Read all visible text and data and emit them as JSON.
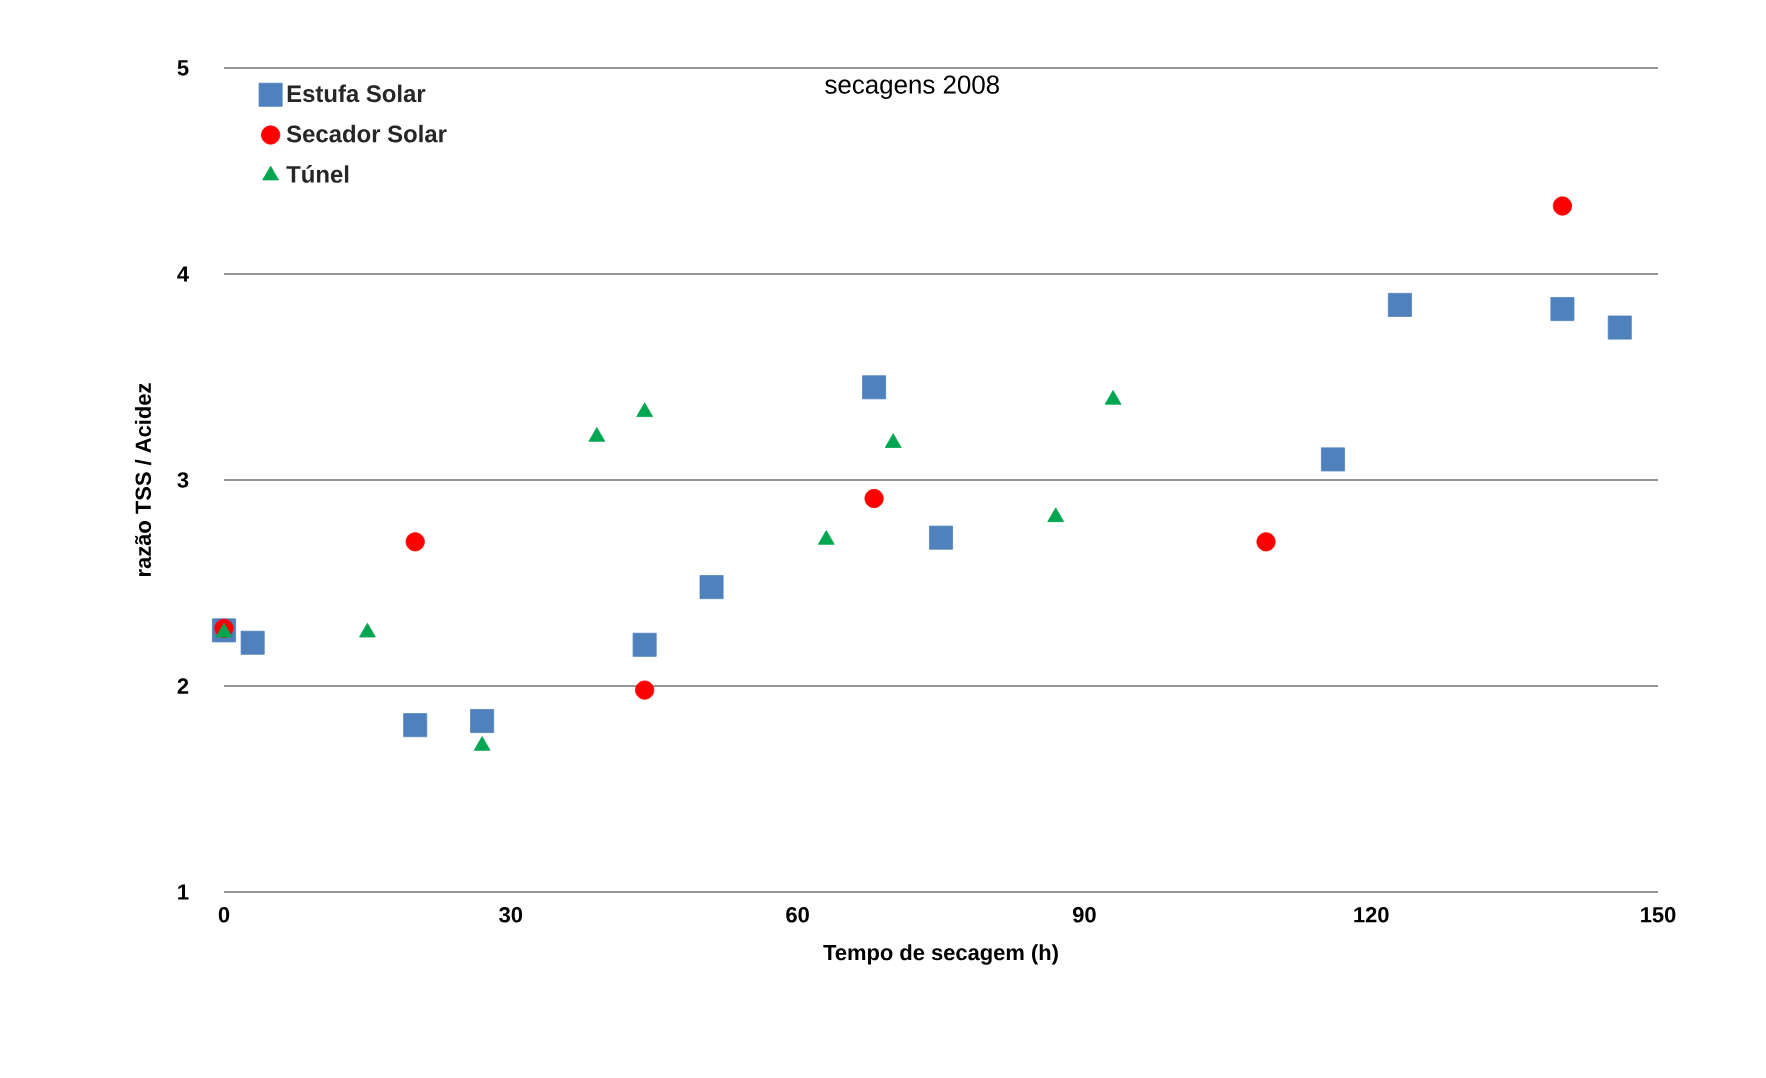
{
  "chart_data": {
    "type": "scatter",
    "title": "secagens 2008",
    "xlabel": "Tempo de secagem (h)",
    "ylabel": "razão TSS / Acidez",
    "xlim": [
      0,
      150
    ],
    "ylim": [
      1,
      5
    ],
    "xticks": [
      0,
      30,
      60,
      90,
      120,
      150
    ],
    "yticks": [
      1,
      2,
      3,
      4,
      5
    ],
    "grid": "y",
    "legend": "top left",
    "series": [
      {
        "name": "Estufa Solar",
        "color": "#4f81bd",
        "marker": "square",
        "x": [
          0,
          3,
          20,
          27,
          44,
          51,
          68,
          75,
          116,
          123,
          140,
          146
        ],
        "values": [
          2.27,
          2.21,
          1.81,
          1.83,
          2.2,
          2.48,
          3.45,
          2.72,
          3.1,
          3.85,
          3.83,
          3.74
        ]
      },
      {
        "name": "Secador Solar",
        "color": "#ff0000",
        "marker": "circle",
        "x": [
          0,
          20,
          44,
          68,
          109,
          140
        ],
        "values": [
          2.28,
          2.7,
          1.98,
          2.91,
          2.7,
          4.33
        ]
      },
      {
        "name": "Túnel",
        "color": "#00a650",
        "marker": "triangle",
        "x": [
          0,
          15,
          27,
          39,
          44,
          63,
          70,
          87,
          93
        ],
        "values": [
          2.26,
          2.26,
          1.71,
          3.21,
          3.33,
          2.71,
          3.18,
          2.82,
          3.39
        ]
      }
    ]
  }
}
